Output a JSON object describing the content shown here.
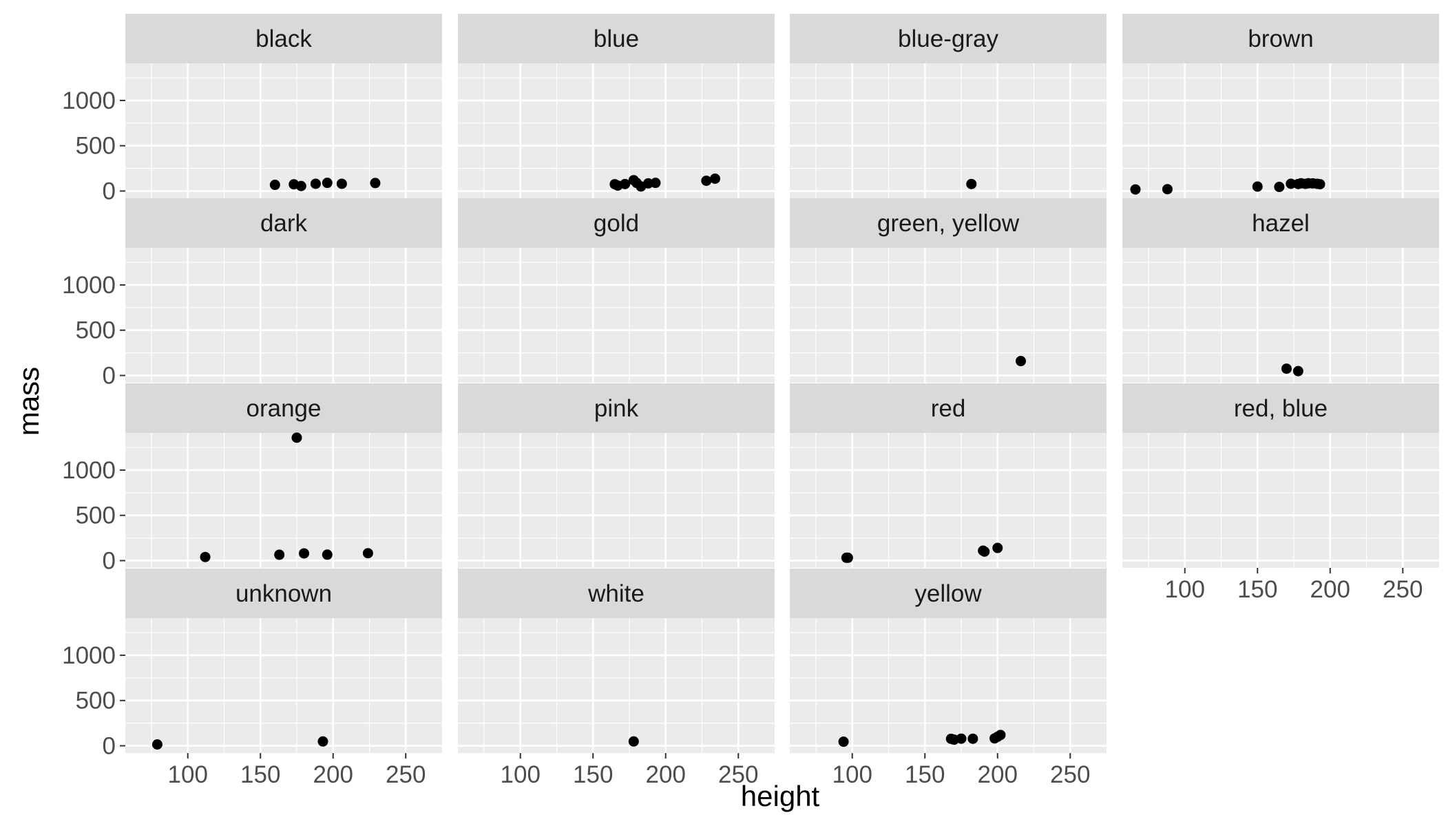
{
  "chart_data": {
    "type": "scatter",
    "xlabel": "height",
    "ylabel": "mass",
    "xlim": [
      57,
      275
    ],
    "ylim": [
      -80,
      1410
    ],
    "x_ticks": [
      100,
      150,
      200,
      250
    ],
    "y_ticks": [
      0,
      500,
      1000
    ],
    "grid": true,
    "colors": {
      "panel_bg": "#ebebeb",
      "grid_major": "#ffffff",
      "strip_bg": "#d9d9d9",
      "point": "#000000",
      "tick_text": "#4d4d4d",
      "tick_mark": "#333333"
    },
    "facets": [
      {
        "label": "black",
        "points": [
          [
            160,
            68
          ],
          [
            173,
            74
          ],
          [
            178,
            55
          ],
          [
            188,
            80
          ],
          [
            196,
            90
          ],
          [
            206,
            80
          ],
          [
            229,
            88
          ]
        ]
      },
      {
        "label": "blue",
        "points": [
          [
            165,
            75
          ],
          [
            167,
            60
          ],
          [
            172,
            77
          ],
          [
            178,
            120
          ],
          [
            180,
            90
          ],
          [
            183,
            50
          ],
          [
            188,
            84
          ],
          [
            193,
            90
          ],
          [
            228,
            113
          ],
          [
            234,
            136
          ]
        ]
      },
      {
        "label": "blue-gray",
        "points": [
          [
            182,
            77
          ]
        ]
      },
      {
        "label": "brown",
        "points": [
          [
            66,
            17
          ],
          [
            88,
            20
          ],
          [
            150,
            49
          ],
          [
            165,
            45
          ],
          [
            173,
            80
          ],
          [
            178,
            77
          ],
          [
            180,
            85
          ],
          [
            183,
            79
          ],
          [
            185,
            85
          ],
          [
            188,
            84
          ],
          [
            191,
            80
          ],
          [
            193,
            75
          ]
        ]
      },
      {
        "label": "dark",
        "points": []
      },
      {
        "label": "gold",
        "points": []
      },
      {
        "label": "green, yellow",
        "points": [
          [
            216,
            159
          ]
        ]
      },
      {
        "label": "hazel",
        "points": [
          [
            170,
            75
          ],
          [
            178,
            48
          ]
        ]
      },
      {
        "label": "orange",
        "points": [
          [
            112,
            40
          ],
          [
            163,
            65
          ],
          [
            175,
            1358
          ],
          [
            180,
            80
          ],
          [
            196,
            66
          ],
          [
            224,
            82
          ]
        ]
      },
      {
        "label": "pink",
        "points": []
      },
      {
        "label": "red",
        "points": [
          [
            96,
            32
          ],
          [
            97,
            32
          ],
          [
            190,
            110
          ],
          [
            191,
            100
          ],
          [
            200,
            140
          ]
        ]
      },
      {
        "label": "red, blue",
        "points": []
      },
      {
        "label": "unknown",
        "points": [
          [
            79,
            15
          ],
          [
            193,
            48
          ]
        ]
      },
      {
        "label": "white",
        "points": [
          [
            178,
            48
          ]
        ]
      },
      {
        "label": "yellow",
        "points": [
          [
            94,
            45
          ],
          [
            168,
            77
          ],
          [
            170,
            68
          ],
          [
            175,
            79
          ],
          [
            183,
            78
          ],
          [
            198,
            82
          ],
          [
            200,
            100
          ],
          [
            202,
            120
          ]
        ]
      }
    ]
  }
}
